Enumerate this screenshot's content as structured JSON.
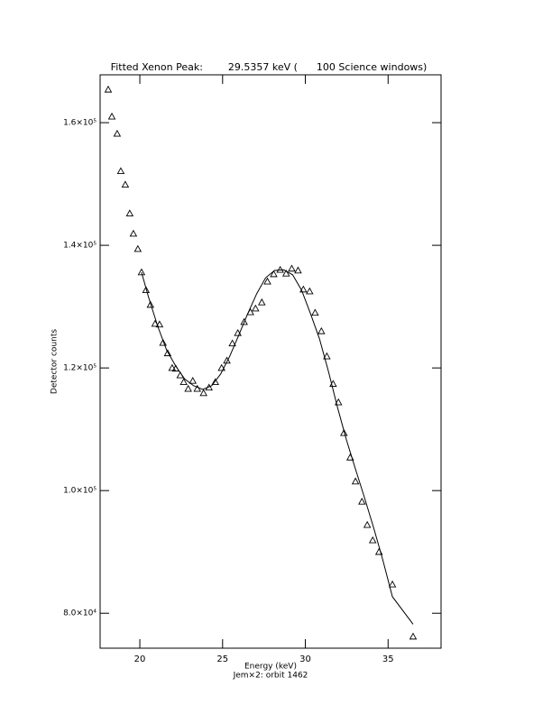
{
  "chart_data": {
    "type": "scatter",
    "title": "Fitted Xenon Peak:        29.5357 keV (      100 Science windows)",
    "x_label": "Energy (keV)",
    "subtitle": "Jem×2: orbit 1462",
    "y_label": "Detector counts",
    "xlim": [
      17.6,
      38.2
    ],
    "ylim": [
      74300,
      167800
    ],
    "xticks": [
      20,
      25,
      30,
      35
    ],
    "yticks": [
      {
        "value": 80000,
        "label": "8.0×10⁴"
      },
      {
        "value": 100000,
        "label": "1.0×10⁵"
      },
      {
        "value": 120000,
        "label": "1.2×10⁵"
      },
      {
        "value": 140000,
        "label": "1.4×10⁵"
      },
      {
        "value": 160000,
        "label": "1.6×10⁵"
      }
    ],
    "grid": false,
    "series": [
      {
        "color": "#000000",
        "marker": "triangle",
        "x": [
          18.09,
          18.31,
          18.63,
          18.85,
          19.12,
          19.39,
          19.61,
          19.88,
          20.1,
          20.37,
          20.64,
          20.92,
          21.19,
          21.4,
          21.68,
          21.95,
          22.17,
          22.44,
          22.65,
          22.92,
          23.2,
          23.47,
          23.85,
          24.18,
          24.56,
          24.94,
          25.26,
          25.59,
          25.92,
          26.3,
          26.68,
          26.99,
          27.37,
          27.71,
          28.09,
          28.48,
          28.84,
          29.18,
          29.56,
          29.88,
          30.26,
          30.59,
          30.97,
          31.3,
          31.68,
          32.0,
          32.33,
          32.71,
          33.03,
          33.42,
          33.74,
          34.07,
          34.45,
          35.26,
          36.51
        ],
        "values": [
          165400,
          161000,
          158200,
          152100,
          149900,
          145200,
          141900,
          139400,
          135600,
          132700,
          130300,
          127200,
          127100,
          124100,
          122400,
          120000,
          119900,
          118800,
          117700,
          116600,
          117900,
          116600,
          115900,
          116800,
          117700,
          120000,
          121200,
          124000,
          125700,
          127500,
          129100,
          129700,
          130700,
          134100,
          135300,
          136000,
          135400,
          136200,
          135900,
          132800,
          132500,
          129000,
          126000,
          121900,
          117400,
          114400,
          109400,
          105400,
          101500,
          98200,
          94400,
          91900,
          90000,
          84700,
          76200
        ]
      },
      {
        "color": "#000000",
        "style": "line",
        "x": [
          20.1,
          20.53,
          21.08,
          21.62,
          22.17,
          22.71,
          23.25,
          23.8,
          24.34,
          24.88,
          25.43,
          25.97,
          26.51,
          27.06,
          27.6,
          28.14,
          28.69,
          29.23,
          29.77,
          30.32,
          30.86,
          31.4,
          31.95,
          32.49,
          33.03,
          33.58,
          34.12,
          34.67,
          35.26,
          36.51
        ],
        "values": [
          135600,
          131500,
          126800,
          122900,
          120300,
          118200,
          117100,
          116500,
          117100,
          119000,
          121900,
          125300,
          128800,
          132100,
          134700,
          135900,
          136000,
          135200,
          132700,
          128800,
          124700,
          119400,
          113500,
          108200,
          103500,
          98800,
          94000,
          88800,
          82700,
          78200
        ]
      }
    ]
  }
}
